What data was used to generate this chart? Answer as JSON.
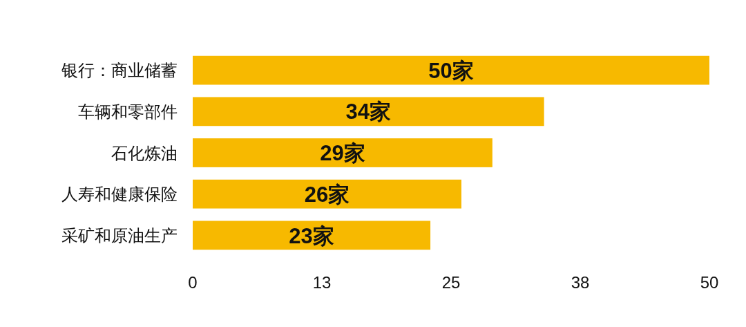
{
  "chart_data": {
    "type": "bar",
    "orientation": "horizontal",
    "categories": [
      "银行：商业储蓄",
      "车辆和零部件",
      "石化炼油",
      "人寿和健康保险",
      "采矿和原油生产"
    ],
    "values": [
      50,
      34,
      29,
      26,
      23
    ],
    "value_labels": [
      "50家",
      "34家",
      "29家",
      "26家",
      "23家"
    ],
    "color": "#f7b900",
    "xlim": [
      0,
      50
    ],
    "xticks": [
      0,
      {
        "value": 12.5,
        "label": "13"
      },
      25,
      {
        "value": 37.5,
        "label": "38"
      },
      50
    ],
    "grid": false
  }
}
